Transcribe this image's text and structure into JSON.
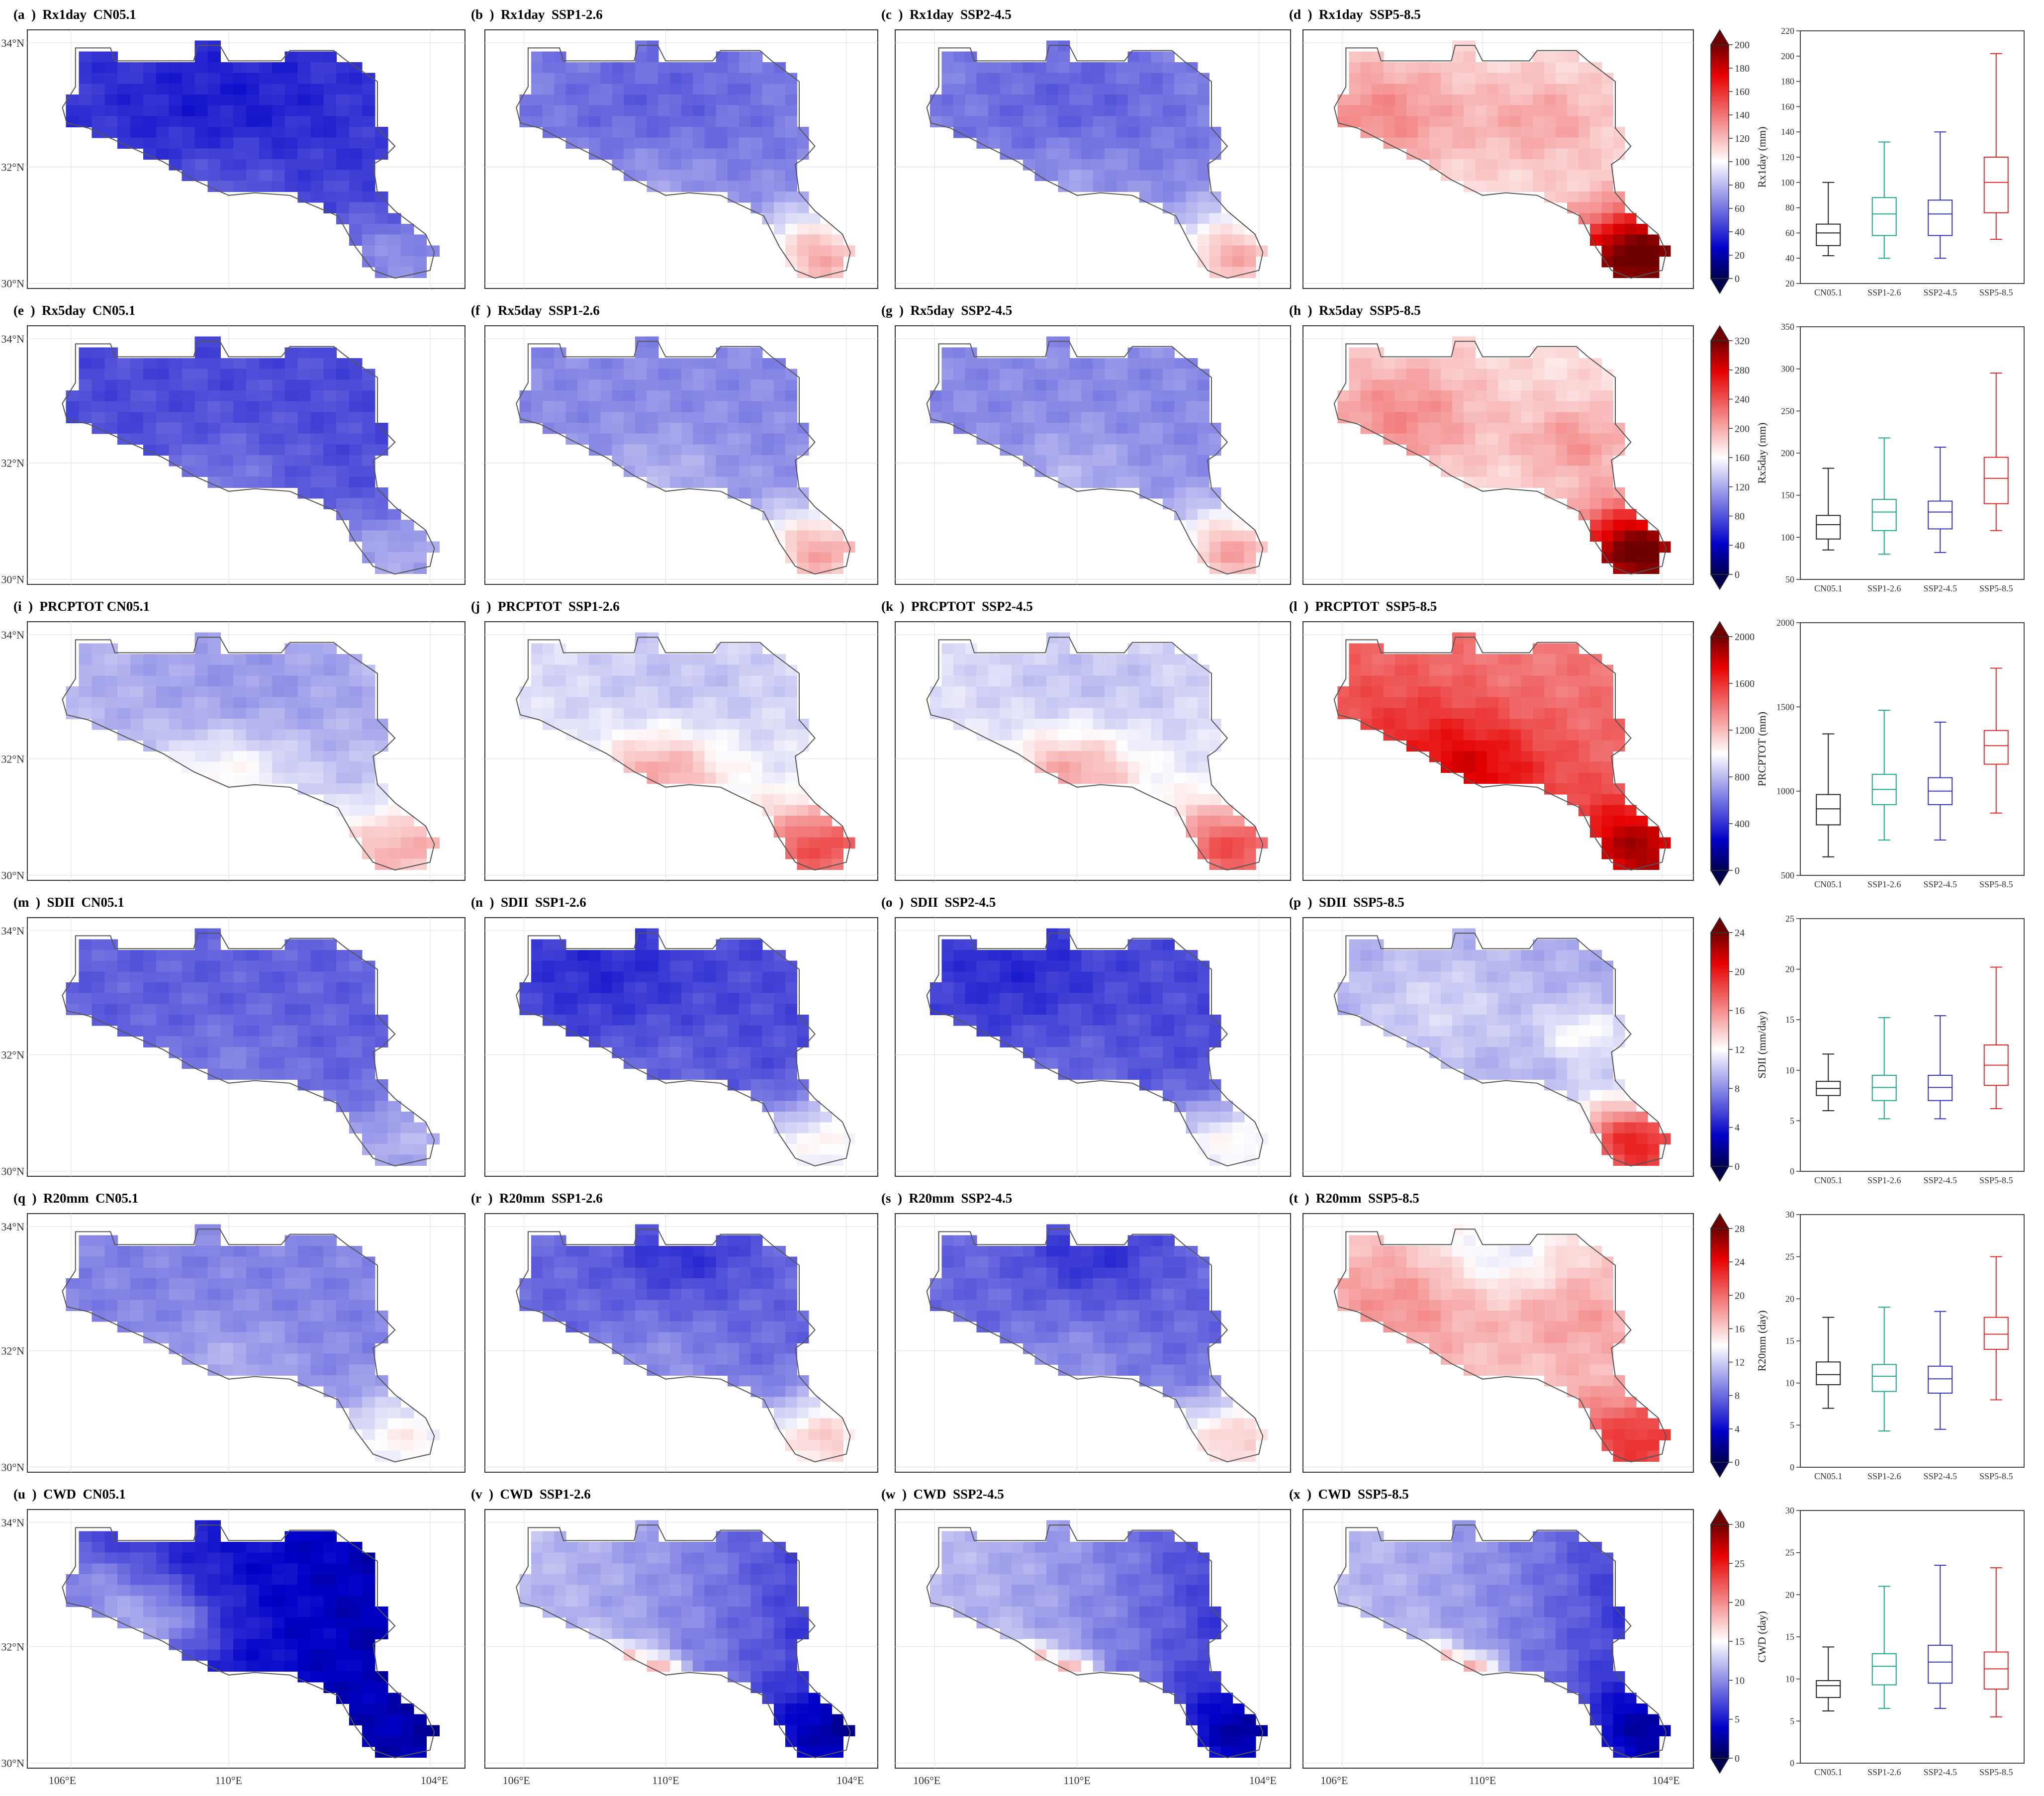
{
  "figure_caption": "",
  "scenarios": [
    "CN05.1",
    "SSP1-2.6",
    "SSP2-4.5",
    "SSP5-8.5"
  ],
  "scenario_colors": {
    "CN05.1": "#222222",
    "SSP1-2.6": "#1fa68a",
    "SSP2-4.5": "#3333bb",
    "SSP5-8.5": "#e0282a"
  },
  "colormap": [
    "#00004f",
    "#0000c8",
    "#ffffff",
    "#e60000",
    "#6e0000"
  ],
  "lat_labels": [
    "34°N",
    "32°N",
    "30°N"
  ],
  "lon_labels": [
    "106°E",
    "110°E",
    "104°E"
  ],
  "panels": [
    {
      "label": "(a  )  Rx1day  CN05.1"
    },
    {
      "label": "(b  )  Rx1day  SSP1-2.6"
    },
    {
      "label": "(c  )  Rx1day  SSP2-4.5"
    },
    {
      "label": "(d  )  Rx1day  SSP5-8.5"
    },
    {
      "label": "(e  )  Rx5day  CN05.1"
    },
    {
      "label": "(f  )  Rx5day  SSP1-2.6"
    },
    {
      "label": "(g  )  Rx5day  SSP2-4.5"
    },
    {
      "label": "(h  )  Rx5day  SSP5-8.5"
    },
    {
      "label": "(i  )  PRCPTOT CN05.1"
    },
    {
      "label": "(j  )  PRCPTOT  SSP1-2.6"
    },
    {
      "label": "(k  )  PRCPTOT  SSP2-4.5"
    },
    {
      "label": "(l  )  PRCPTOT  SSP5-8.5"
    },
    {
      "label": "(m  )  SDII  CN05.1"
    },
    {
      "label": "(n  )  SDII  SSP1-2.6"
    },
    {
      "label": "(o  )  SDII  SSP2-4.5"
    },
    {
      "label": "(p  )  SDII  SSP5-8.5"
    },
    {
      "label": "(q  )  R20mm  CN05.1"
    },
    {
      "label": "(r  )  R20mm  SSP1-2.6"
    },
    {
      "label": "(s  )  R20mm  SSP2-4.5"
    },
    {
      "label": "(t  )  R20mm  SSP5-8.5"
    },
    {
      "label": "(u  )  CWD  CN05.1"
    },
    {
      "label": "(v  )  CWD  SSP1-2.6"
    },
    {
      "label": "(w  )  CWD  SSP2-4.5"
    },
    {
      "label": "(x  )  CWD  SSP5-8.5"
    }
  ],
  "chart_data": [
    {
      "type": "box",
      "index": "Rx1day",
      "ylabel": "Rx1day (mm)",
      "ylim": [
        20,
        220
      ],
      "yticks": [
        20,
        40,
        60,
        80,
        100,
        120,
        140,
        160,
        180,
        200,
        220
      ],
      "colorbar": {
        "ticks": [
          0,
          20,
          40,
          60,
          80,
          100,
          120,
          140,
          160,
          180,
          200
        ],
        "range": [
          0,
          200
        ]
      },
      "series": [
        {
          "name": "CN05.1",
          "whisker_low": 42,
          "q1": 50,
          "median": 60,
          "q3": 67,
          "whisker_high": 100
        },
        {
          "name": "SSP1-2.6",
          "whisker_low": 40,
          "q1": 58,
          "median": 75,
          "q3": 88,
          "whisker_high": 132
        },
        {
          "name": "SSP2-4.5",
          "whisker_low": 40,
          "q1": 58,
          "median": 75,
          "q3": 86,
          "whisker_high": 140
        },
        {
          "name": "SSP5-8.5",
          "whisker_low": 55,
          "q1": 76,
          "median": 100,
          "q3": 120,
          "whisker_high": 202
        }
      ]
    },
    {
      "type": "box",
      "index": "Rx5day",
      "ylabel": "Rx5day (mm)",
      "ylim": [
        50,
        350
      ],
      "yticks": [
        50,
        100,
        150,
        200,
        250,
        300,
        350
      ],
      "colorbar": {
        "ticks": [
          0,
          40,
          80,
          120,
          160,
          200,
          240,
          280,
          320
        ],
        "range": [
          0,
          320
        ]
      },
      "series": [
        {
          "name": "CN05.1",
          "whisker_low": 85,
          "q1": 98,
          "median": 115,
          "q3": 126,
          "whisker_high": 182
        },
        {
          "name": "SSP1-2.6",
          "whisker_low": 80,
          "q1": 108,
          "median": 130,
          "q3": 145,
          "whisker_high": 218
        },
        {
          "name": "SSP2-4.5",
          "whisker_low": 82,
          "q1": 110,
          "median": 130,
          "q3": 143,
          "whisker_high": 207
        },
        {
          "name": "SSP5-8.5",
          "whisker_low": 108,
          "q1": 140,
          "median": 170,
          "q3": 195,
          "whisker_high": 295
        }
      ]
    },
    {
      "type": "box",
      "index": "PRCPTOT",
      "ylabel": "PRCPTOT (mm)",
      "ylim": [
        500,
        2000
      ],
      "yticks": [
        500,
        1000,
        1500,
        2000
      ],
      "colorbar": {
        "ticks": [
          0,
          400,
          800,
          1200,
          1600,
          2000
        ],
        "range": [
          0,
          2000
        ]
      },
      "series": [
        {
          "name": "CN05.1",
          "whisker_low": 610,
          "q1": 800,
          "median": 895,
          "q3": 980,
          "whisker_high": 1340
        },
        {
          "name": "SSP1-2.6",
          "whisker_low": 710,
          "q1": 920,
          "median": 1010,
          "q3": 1100,
          "whisker_high": 1480
        },
        {
          "name": "SSP2-4.5",
          "whisker_low": 710,
          "q1": 920,
          "median": 1000,
          "q3": 1080,
          "whisker_high": 1410
        },
        {
          "name": "SSP5-8.5",
          "whisker_low": 870,
          "q1": 1160,
          "median": 1270,
          "q3": 1360,
          "whisker_high": 1730
        }
      ]
    },
    {
      "type": "box",
      "index": "SDII",
      "ylabel": "SDII (mm/day)",
      "ylim": [
        0,
        25
      ],
      "yticks": [
        0,
        5,
        10,
        15,
        20,
        25
      ],
      "colorbar": {
        "ticks": [
          0,
          4,
          8,
          12,
          16,
          20,
          24
        ],
        "range": [
          0,
          24
        ]
      },
      "series": [
        {
          "name": "CN05.1",
          "whisker_low": 6.0,
          "q1": 7.5,
          "median": 8.2,
          "q3": 8.9,
          "whisker_high": 11.6
        },
        {
          "name": "SSP1-2.6",
          "whisker_low": 5.2,
          "q1": 7.0,
          "median": 8.3,
          "q3": 9.5,
          "whisker_high": 15.2
        },
        {
          "name": "SSP2-4.5",
          "whisker_low": 5.2,
          "q1": 7.0,
          "median": 8.3,
          "q3": 9.5,
          "whisker_high": 15.4
        },
        {
          "name": "SSP5-8.5",
          "whisker_low": 6.2,
          "q1": 8.5,
          "median": 10.5,
          "q3": 12.5,
          "whisker_high": 20.2
        }
      ]
    },
    {
      "type": "box",
      "index": "R20mm",
      "ylabel": "R20mm (day)",
      "ylim": [
        0,
        30
      ],
      "yticks": [
        0,
        5,
        10,
        15,
        20,
        25,
        30
      ],
      "colorbar": {
        "ticks": [
          0,
          4,
          8,
          12,
          16,
          20,
          24,
          28
        ],
        "range": [
          0,
          28
        ]
      },
      "series": [
        {
          "name": "CN05.1",
          "whisker_low": 7.0,
          "q1": 9.8,
          "median": 11.0,
          "q3": 12.5,
          "whisker_high": 17.8
        },
        {
          "name": "SSP1-2.6",
          "whisker_low": 4.3,
          "q1": 9.0,
          "median": 10.8,
          "q3": 12.2,
          "whisker_high": 19.0
        },
        {
          "name": "SSP2-4.5",
          "whisker_low": 4.5,
          "q1": 8.8,
          "median": 10.5,
          "q3": 12.0,
          "whisker_high": 18.5
        },
        {
          "name": "SSP5-8.5",
          "whisker_low": 8.0,
          "q1": 14.0,
          "median": 15.8,
          "q3": 17.8,
          "whisker_high": 25.0
        }
      ]
    },
    {
      "type": "box",
      "index": "CWD",
      "ylabel": "CWD (day)",
      "ylim": [
        0,
        30
      ],
      "yticks": [
        0,
        5,
        10,
        15,
        20,
        25,
        30
      ],
      "colorbar": {
        "ticks": [
          0,
          5,
          10,
          15,
          20,
          25,
          30
        ],
        "range": [
          0,
          30
        ]
      },
      "series": [
        {
          "name": "CN05.1",
          "whisker_low": 6.2,
          "q1": 7.8,
          "median": 9.2,
          "q3": 9.8,
          "whisker_high": 13.8
        },
        {
          "name": "SSP1-2.6",
          "whisker_low": 6.5,
          "q1": 9.3,
          "median": 11.5,
          "q3": 13.0,
          "whisker_high": 21.0
        },
        {
          "name": "SSP2-4.5",
          "whisker_low": 6.5,
          "q1": 9.5,
          "median": 12.0,
          "q3": 14.0,
          "whisker_high": 23.5
        },
        {
          "name": "SSP5-8.5",
          "whisker_low": 5.5,
          "q1": 8.8,
          "median": 11.2,
          "q3": 13.2,
          "whisker_high": 23.2
        }
      ]
    }
  ]
}
